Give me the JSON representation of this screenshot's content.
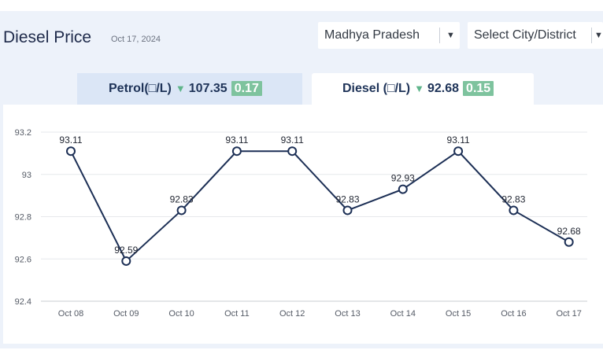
{
  "header": {
    "title": "Diesel Price",
    "date": "Oct 17, 2024"
  },
  "filters": {
    "state": "Madhya Pradesh",
    "city_placeholder": "Select City/District"
  },
  "tabs": {
    "petrol": {
      "label": "Petrol(□/L)",
      "price": "107.35",
      "change": "0.17"
    },
    "diesel": {
      "label": "Diesel (□/L)",
      "price": "92.68",
      "change": "0.15"
    }
  },
  "icons": {
    "dropdown": "caret-down-icon",
    "change": "triangle-down-icon"
  },
  "colors": {
    "line": "#1c2f55",
    "decrease": "#5fb58b",
    "badge": "#7ec39e",
    "active_tab": "#ffffff",
    "inactive_tab": "#dbe6f6"
  },
  "chart_data": {
    "type": "line",
    "categories": [
      "Oct 08",
      "Oct 09",
      "Oct 10",
      "Oct 11",
      "Oct 12",
      "Oct 13",
      "Oct 14",
      "Oct 15",
      "Oct 16",
      "Oct 17"
    ],
    "values": [
      93.11,
      92.59,
      92.83,
      93.11,
      93.11,
      92.83,
      92.93,
      93.11,
      92.83,
      92.68
    ],
    "data_labels": [
      "93.11",
      "92.59",
      "92.83",
      "93.11",
      "93.11",
      "92.83",
      "92.93",
      "93.11",
      "92.83",
      "92.68"
    ],
    "ylim": [
      92.4,
      93.2
    ],
    "yticks": [
      92.4,
      92.6,
      92.8,
      93,
      93.2
    ],
    "ytick_labels": [
      "92.4",
      "92.6",
      "92.8",
      "93",
      "93.2"
    ],
    "grid": true,
    "legend": "none"
  }
}
